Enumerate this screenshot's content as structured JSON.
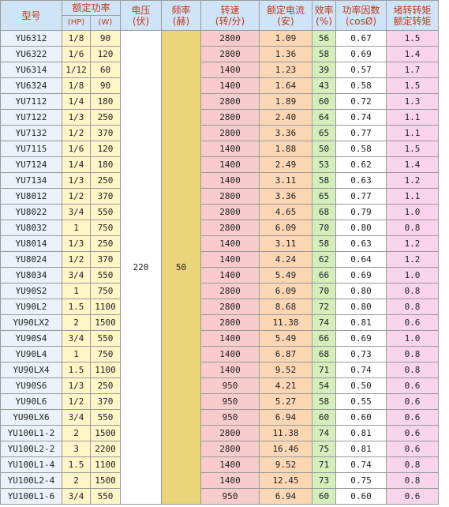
{
  "headers": {
    "model": "型号",
    "rated_power": "额定功率",
    "hp_unit": "(HP)",
    "w_unit": "(W)",
    "voltage": "电压",
    "voltage_unit": "(伏)",
    "frequency": "频率",
    "frequency_unit": "(赫)",
    "speed": "转速",
    "speed_unit": "(转/分)",
    "rated_current": "额定电流",
    "rated_current_unit": "(安)",
    "efficiency": "效率",
    "efficiency_unit": "(%)",
    "power_factor": "功率因数",
    "power_factor_unit": "(cosØ)",
    "torque_ratio_top": "堵转转矩",
    "torque_ratio_bottom": "额定转矩"
  },
  "voltage_value": "220",
  "frequency_value": "50",
  "rows": [
    {
      "model": "YU6312",
      "hp": "1/8",
      "w": "90",
      "rpm": "2800",
      "amp": "1.09",
      "eff": "56",
      "pf": "0.67",
      "tq": "1.5"
    },
    {
      "model": "YU6322",
      "hp": "1/6",
      "w": "120",
      "rpm": "2800",
      "amp": "1.36",
      "eff": "58",
      "pf": "0.69",
      "tq": "1.4"
    },
    {
      "model": "YU6314",
      "hp": "1/12",
      "w": "60",
      "rpm": "1400",
      "amp": "1.23",
      "eff": "39",
      "pf": "0.57",
      "tq": "1.7"
    },
    {
      "model": "YU6324",
      "hp": "1/8",
      "w": "90",
      "rpm": "1400",
      "amp": "1.64",
      "eff": "43",
      "pf": "0.58",
      "tq": "1.5"
    },
    {
      "model": "YU7112",
      "hp": "1/4",
      "w": "180",
      "rpm": "2800",
      "amp": "1.89",
      "eff": "60",
      "pf": "0.72",
      "tq": "1.3"
    },
    {
      "model": "YU7122",
      "hp": "1/3",
      "w": "250",
      "rpm": "2800",
      "amp": "2.40",
      "eff": "64",
      "pf": "0.74",
      "tq": "1.1"
    },
    {
      "model": "YU7132",
      "hp": "1/2",
      "w": "370",
      "rpm": "2800",
      "amp": "3.36",
      "eff": "65",
      "pf": "0.77",
      "tq": "1.1"
    },
    {
      "model": "YU7115",
      "hp": "1/6",
      "w": "120",
      "rpm": "1400",
      "amp": "1.88",
      "eff": "50",
      "pf": "0.58",
      "tq": "1.5"
    },
    {
      "model": "YU7124",
      "hp": "1/4",
      "w": "180",
      "rpm": "1400",
      "amp": "2.49",
      "eff": "53",
      "pf": "0.62",
      "tq": "1.4"
    },
    {
      "model": "YU7134",
      "hp": "1/3",
      "w": "250",
      "rpm": "1400",
      "amp": "3.11",
      "eff": "58",
      "pf": "0.63",
      "tq": "1.2"
    },
    {
      "model": "YU8012",
      "hp": "1/2",
      "w": "370",
      "rpm": "2800",
      "amp": "3.36",
      "eff": "65",
      "pf": "0.77",
      "tq": "1.1"
    },
    {
      "model": "YU8022",
      "hp": "3/4",
      "w": "550",
      "rpm": "2800",
      "amp": "4.65",
      "eff": "68",
      "pf": "0.79",
      "tq": "1.0"
    },
    {
      "model": "YU8032",
      "hp": "1",
      "w": "750",
      "rpm": "2800",
      "amp": "6.09",
      "eff": "70",
      "pf": "0.80",
      "tq": "0.8"
    },
    {
      "model": "YU8014",
      "hp": "1/3",
      "w": "250",
      "rpm": "1400",
      "amp": "3.11",
      "eff": "58",
      "pf": "0.63",
      "tq": "1.2"
    },
    {
      "model": "YU8024",
      "hp": "1/2",
      "w": "370",
      "rpm": "1400",
      "amp": "4.24",
      "eff": "62",
      "pf": "0.64",
      "tq": "1.2"
    },
    {
      "model": "YU8034",
      "hp": "3/4",
      "w": "550",
      "rpm": "1400",
      "amp": "5.49",
      "eff": "66",
      "pf": "0.69",
      "tq": "1.0"
    },
    {
      "model": "YU90S2",
      "hp": "1",
      "w": "750",
      "rpm": "2800",
      "amp": "6.09",
      "eff": "70",
      "pf": "0.80",
      "tq": "0.8"
    },
    {
      "model": "YU90L2",
      "hp": "1.5",
      "w": "1100",
      "rpm": "2800",
      "amp": "8.68",
      "eff": "72",
      "pf": "0.80",
      "tq": "0.8"
    },
    {
      "model": "YU90LX2",
      "hp": "2",
      "w": "1500",
      "rpm": "2800",
      "amp": "11.38",
      "eff": "74",
      "pf": "0.81",
      "tq": "0.6"
    },
    {
      "model": "YU90S4",
      "hp": "3/4",
      "w": "550",
      "rpm": "1400",
      "amp": "5.49",
      "eff": "66",
      "pf": "0.69",
      "tq": "1.0"
    },
    {
      "model": "YU90L4",
      "hp": "1",
      "w": "750",
      "rpm": "1400",
      "amp": "6.87",
      "eff": "68",
      "pf": "0.73",
      "tq": "0.8"
    },
    {
      "model": "YU90LX4",
      "hp": "1.5",
      "w": "1100",
      "rpm": "1400",
      "amp": "9.52",
      "eff": "71",
      "pf": "0.74",
      "tq": "0.8"
    },
    {
      "model": "YU90S6",
      "hp": "1/3",
      "w": "250",
      "rpm": "950",
      "amp": "4.21",
      "eff": "54",
      "pf": "0.50",
      "tq": "0.6"
    },
    {
      "model": "YU90L6",
      "hp": "1/2",
      "w": "370",
      "rpm": "950",
      "amp": "5.27",
      "eff": "58",
      "pf": "0.55",
      "tq": "0.6"
    },
    {
      "model": "YU90LX6",
      "hp": "3/4",
      "w": "550",
      "rpm": "950",
      "amp": "6.94",
      "eff": "60",
      "pf": "0.60",
      "tq": "0.6"
    },
    {
      "model": "YU100L1-2",
      "hp": "2",
      "w": "1500",
      "rpm": "2800",
      "amp": "11.38",
      "eff": "74",
      "pf": "0.81",
      "tq": "0.6"
    },
    {
      "model": "YU100L2-2",
      "hp": "3",
      "w": "2200",
      "rpm": "2800",
      "amp": "16.46",
      "eff": "75",
      "pf": "0.81",
      "tq": "0.6"
    },
    {
      "model": "YU100L1-4",
      "hp": "1.5",
      "w": "1100",
      "rpm": "1400",
      "amp": "9.52",
      "eff": "71",
      "pf": "0.74",
      "tq": "0.8"
    },
    {
      "model": "YU100L2-4",
      "hp": "2",
      "w": "1500",
      "rpm": "1400",
      "amp": "12.45",
      "eff": "73",
      "pf": "0.75",
      "tq": "0.8"
    },
    {
      "model": "YU100L1-6",
      "hp": "3/4",
      "w": "550",
      "rpm": "950",
      "amp": "6.94",
      "eff": "60",
      "pf": "0.60",
      "tq": "0.6"
    }
  ]
}
